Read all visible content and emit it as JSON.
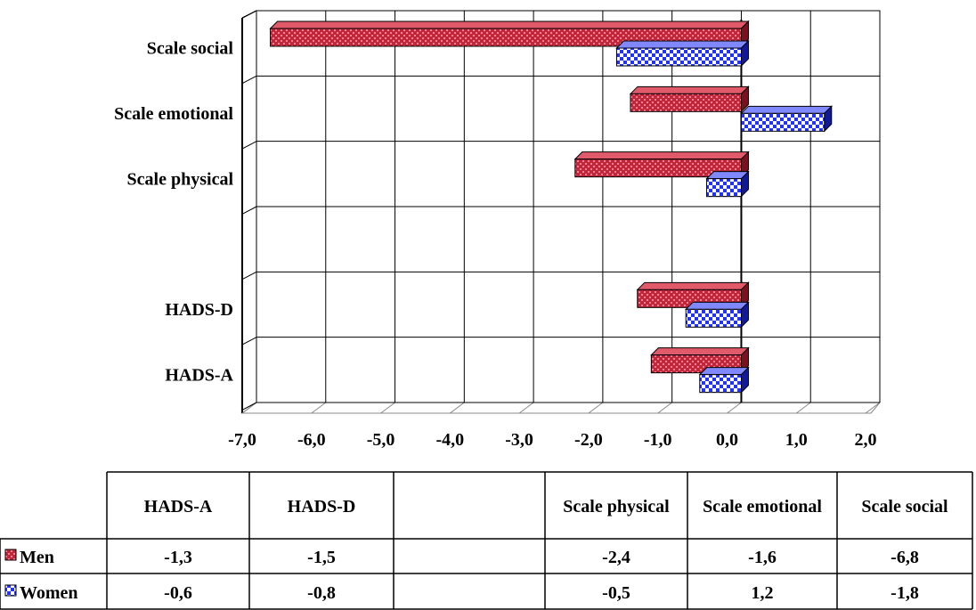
{
  "chart_data": {
    "type": "bar",
    "orientation": "horizontal",
    "categories": [
      "HADS-A",
      "HADS-D",
      "",
      "Scale physical",
      "Scale emotional",
      "Scale social"
    ],
    "series": [
      {
        "name": "Men",
        "values": [
          -1.3,
          -1.5,
          null,
          -2.4,
          -1.6,
          -6.8
        ],
        "color": "#c0283a"
      },
      {
        "name": "Women",
        "values": [
          -0.6,
          -0.8,
          null,
          -0.5,
          1.2,
          -1.8
        ],
        "color": "#2233ff"
      }
    ],
    "x_ticks": [
      "-7,0",
      "-6,0",
      "-5,0",
      "-4,0",
      "-3,0",
      "-2,0",
      "-1,0",
      "0,0",
      "1,0",
      "2,0"
    ],
    "xlim": [
      -7,
      2
    ],
    "grid": true,
    "data_table": {
      "headers": [
        "HADS-A",
        "HADS-D",
        "",
        "Scale physical",
        "Scale emotional",
        "Scale social"
      ],
      "rows": [
        {
          "label": "Men",
          "cells": [
            "-1,3",
            "-1,5",
            "",
            "-2,4",
            "-1,6",
            "-6,8"
          ]
        },
        {
          "label": "Women",
          "cells": [
            "-0,6",
            "-0,8",
            "",
            "-0,5",
            "1,2",
            "-1,8"
          ]
        }
      ]
    }
  }
}
